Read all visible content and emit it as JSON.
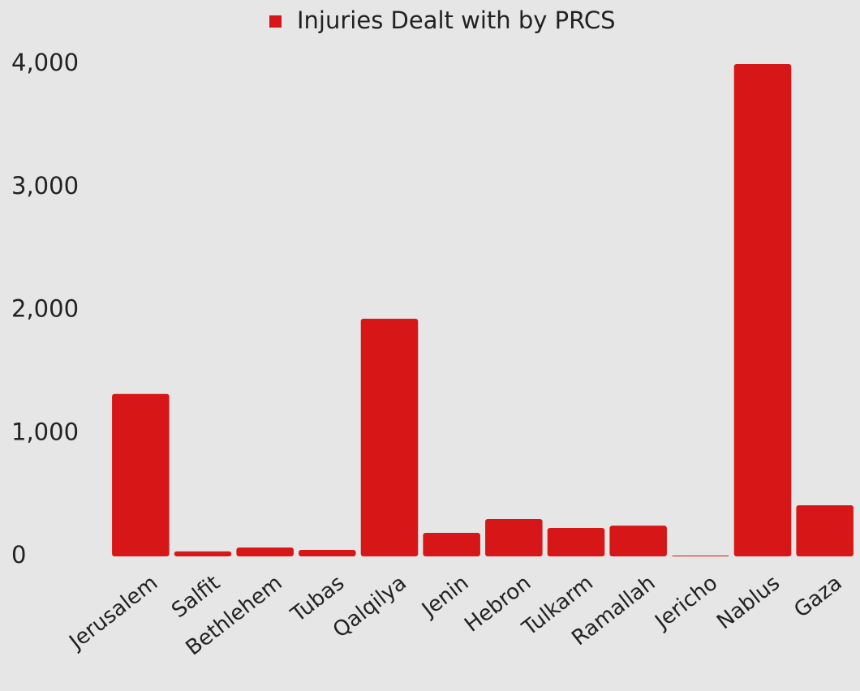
{
  "chart_data": {
    "type": "bar",
    "legend": "Injuries Dealt with by PRCS",
    "categories": [
      "Jerusalem",
      "Salfit",
      "Bethlehem",
      "Tubas",
      "Qalqilya",
      "Jenin",
      "Hebron",
      "Tulkarm",
      "Ramallah",
      "Jericho",
      "Nablus",
      "Gaza"
    ],
    "values": [
      1320,
      40,
      72,
      53,
      1931,
      191,
      303,
      231,
      250,
      7,
      4000,
      415
    ],
    "color": "#d71717",
    "ylim": [
      0,
      4000
    ],
    "yticks": [
      0,
      {
        "value": 1000,
        "label": "1,000"
      },
      {
        "value": 2000,
        "label": "2,000"
      },
      {
        "value": 3000,
        "label": "3,000"
      },
      {
        "value": 4000,
        "label": "4,000"
      }
    ],
    "grid": false
  }
}
